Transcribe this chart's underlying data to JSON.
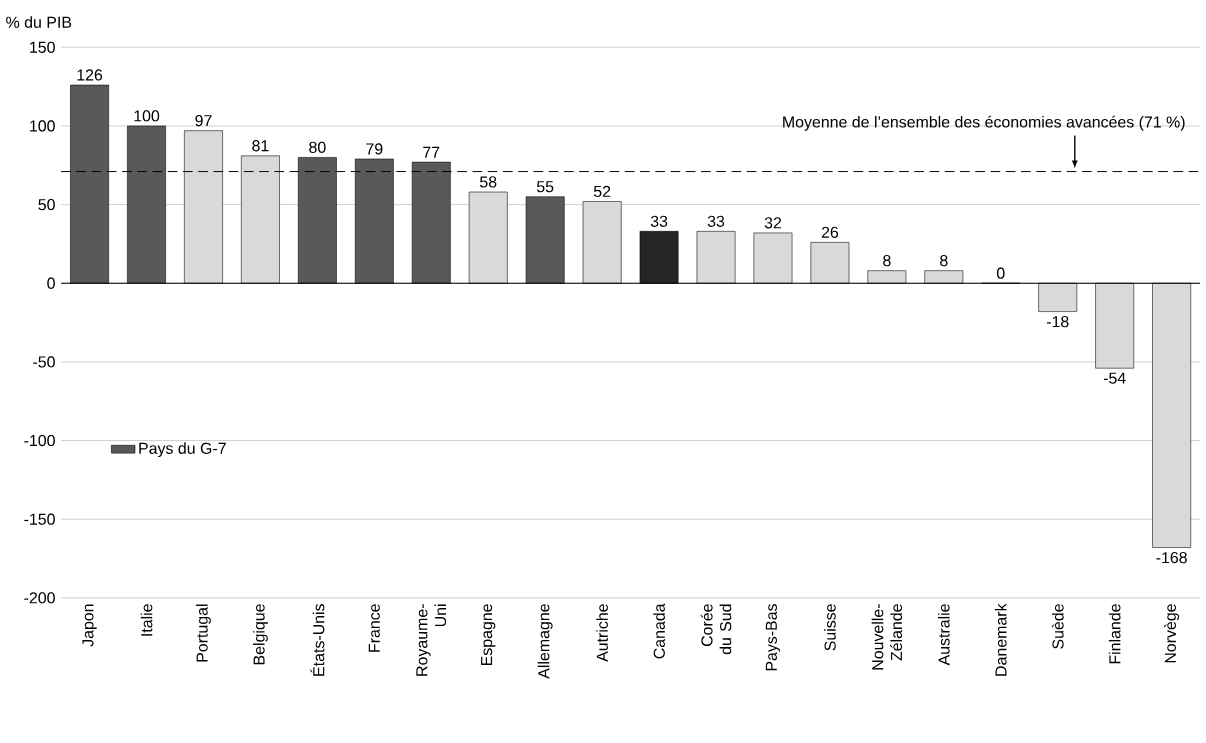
{
  "chart_data": {
    "type": "bar",
    "ylabel": "% du PIB",
    "categories": [
      "Japon",
      "Italie",
      "Portugal",
      "Belgique",
      "États-Unis",
      "France",
      "Royaume-Uni",
      "Espagne",
      "Allemagne",
      "Autriche",
      "Canada",
      "Corée du Sud",
      "Pays-Bas",
      "Suisse",
      "Nouvelle-Zélande",
      "Australie",
      "Danemark",
      "Suède",
      "Finlande",
      "Norvège"
    ],
    "series": [
      {
        "name": "Pays du G-7",
        "color": "#595959",
        "colors": [
          "#595959",
          "#595959",
          null,
          null,
          "#595959",
          "#595959",
          "#595959",
          null,
          "#595959",
          null,
          "#262626",
          null,
          null,
          null,
          null,
          null,
          null,
          null,
          null,
          null
        ],
        "values": [
          126,
          100,
          null,
          null,
          80,
          79,
          77,
          null,
          55,
          null,
          33,
          null,
          null,
          null,
          null,
          null,
          null,
          null,
          null,
          null
        ]
      },
      {
        "color": "#d9d9d9",
        "values": [
          null,
          null,
          97,
          81,
          null,
          null,
          null,
          58,
          null,
          52,
          null,
          33,
          32,
          26,
          8,
          8,
          0,
          -18,
          -54,
          -168
        ]
      }
    ],
    "data_labels": true,
    "ylim": [
      -200,
      150
    ],
    "yticks": [
      -200,
      -150,
      -100,
      -50,
      0,
      50,
      100,
      150
    ],
    "grid": "y",
    "legend": "left",
    "ref_lines": [
      {
        "axis": "y",
        "value": 71,
        "label": "Moyenne de l’ensemble des économies avancées (71 %)",
        "line_style": "dashed",
        "color": "#000000"
      }
    ]
  }
}
